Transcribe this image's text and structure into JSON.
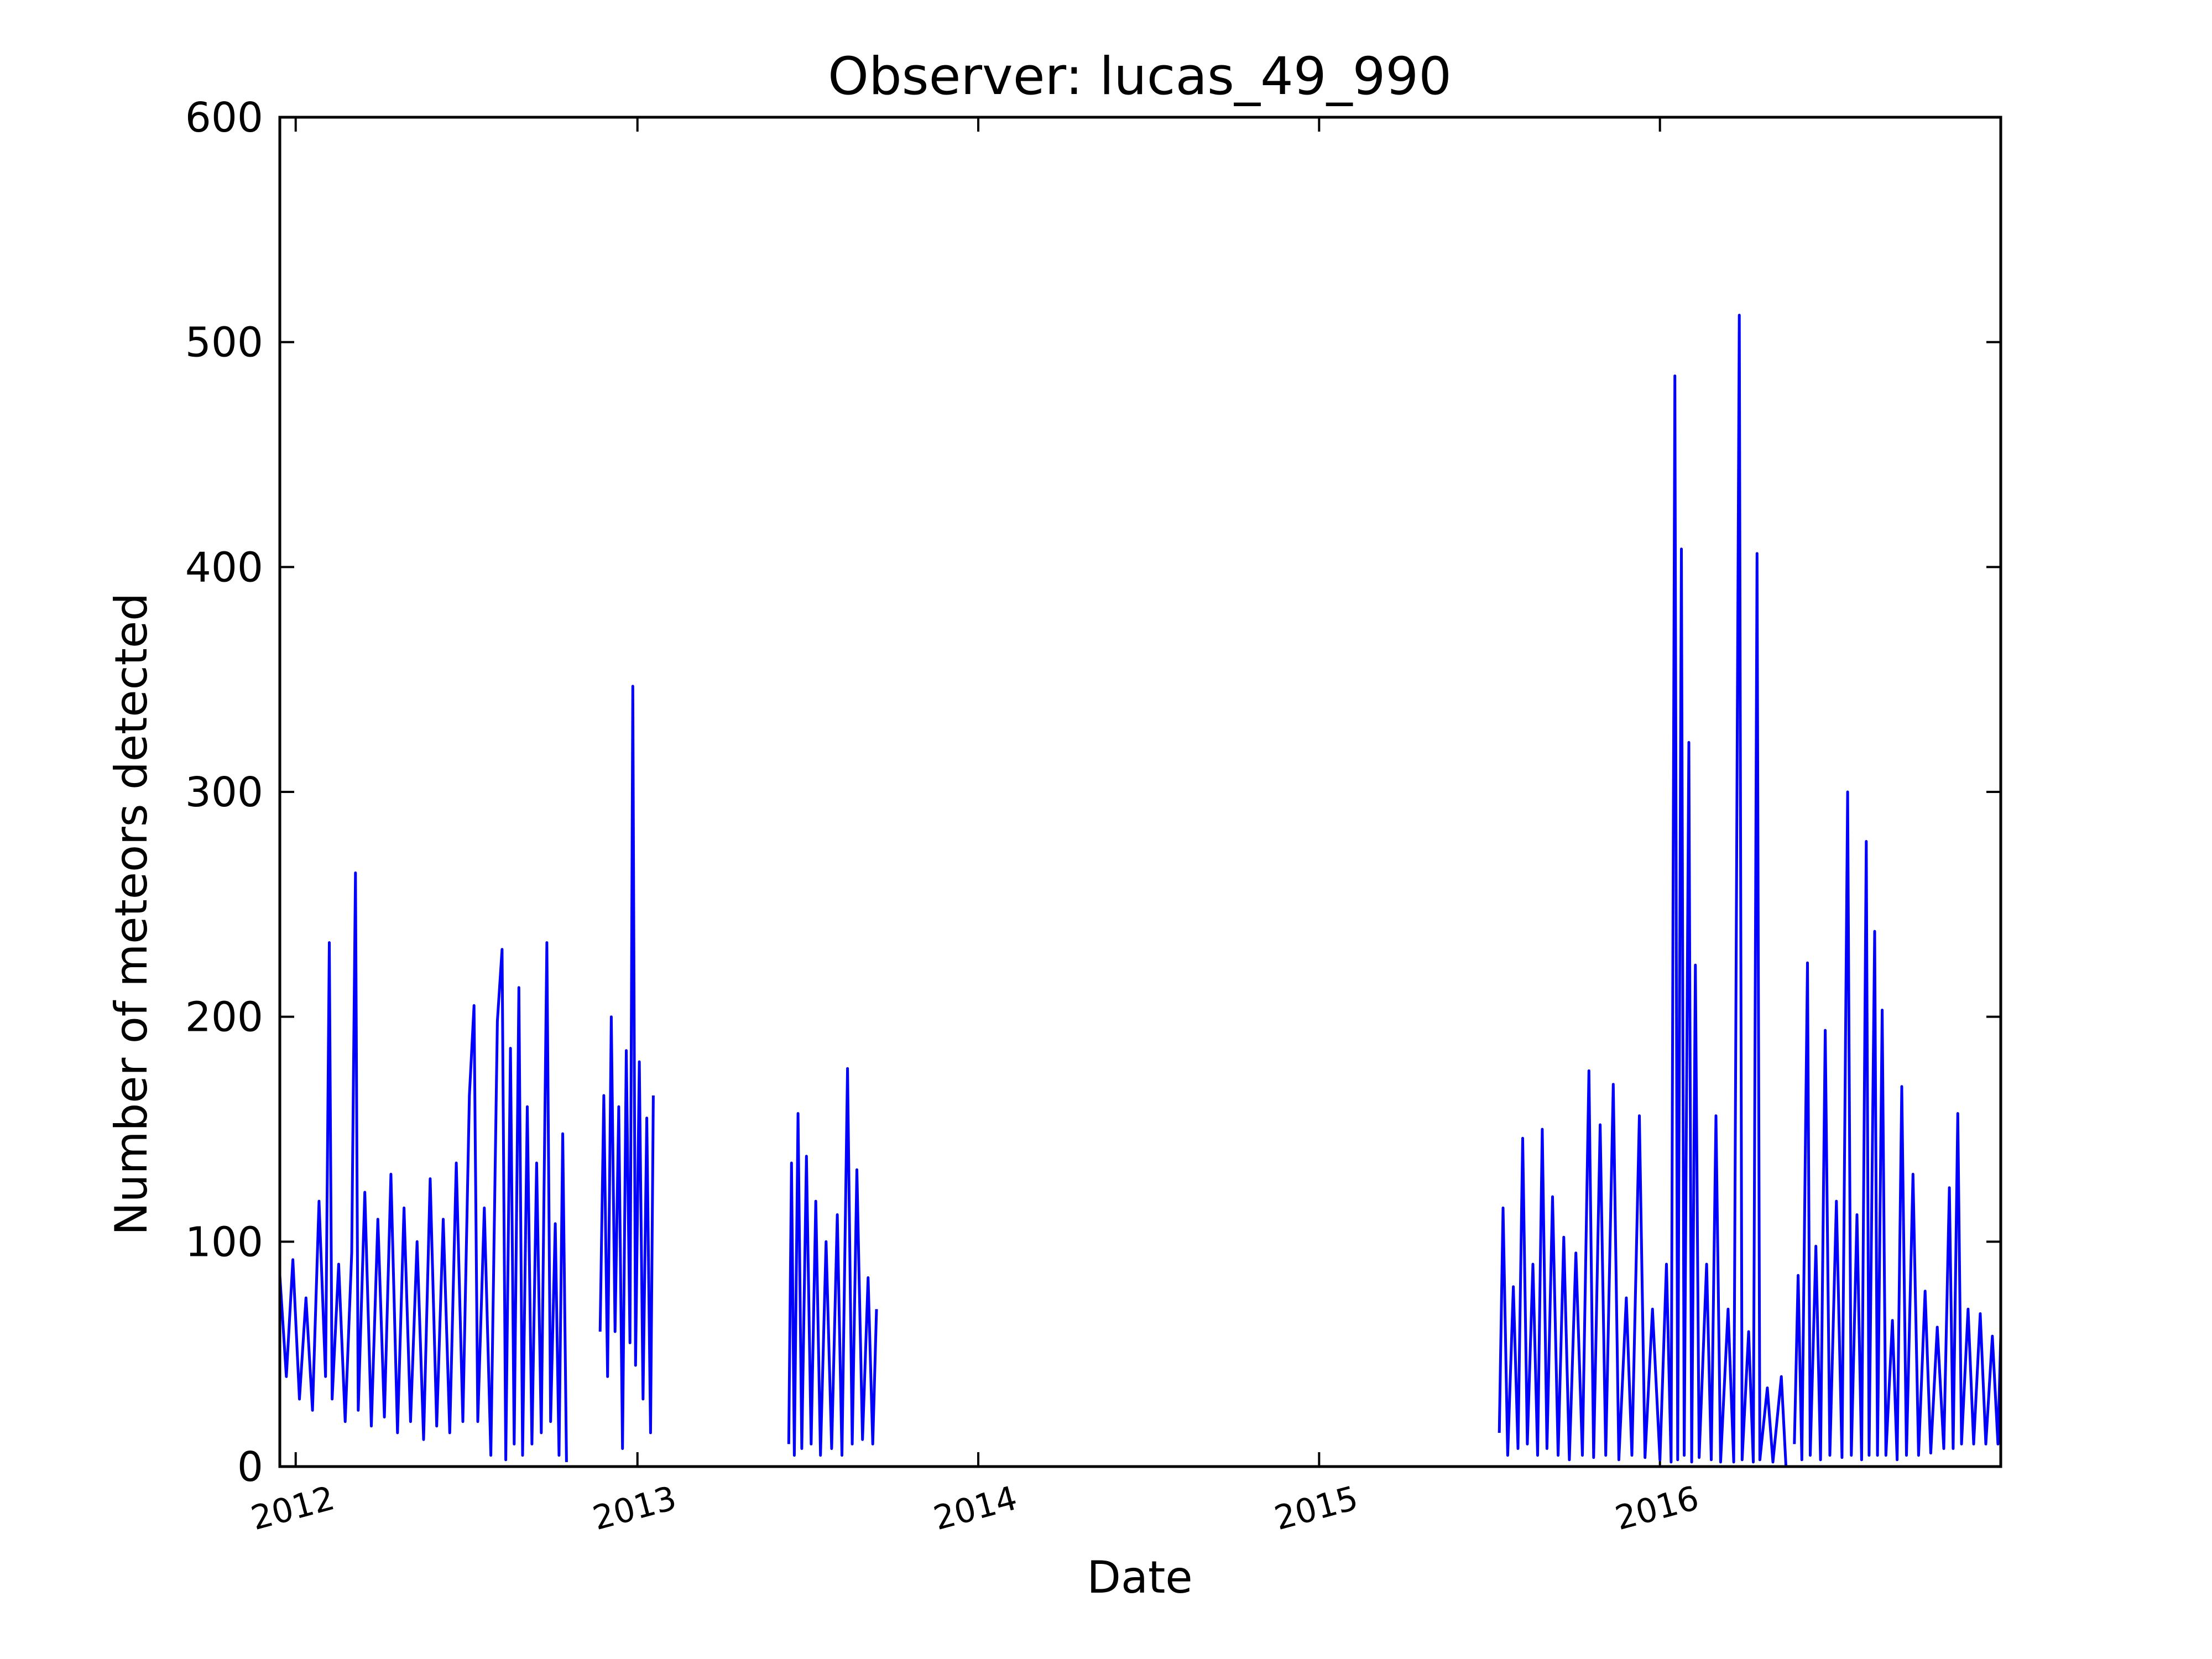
{
  "chart_data": {
    "type": "line",
    "title": "Observer: lucas_49_990",
    "xlabel": "Date",
    "ylabel": "Number of meteors detected",
    "xlim": [
      "2011-12-15",
      "2016-12-31"
    ],
    "ylim": [
      0,
      600
    ],
    "xticks": [
      {
        "date": "2012-01-01",
        "label": "2012"
      },
      {
        "date": "2013-01-01",
        "label": "2013"
      },
      {
        "date": "2014-01-01",
        "label": "2014"
      },
      {
        "date": "2015-01-01",
        "label": "2015"
      },
      {
        "date": "2016-01-01",
        "label": "2016"
      }
    ],
    "yticks": [
      0,
      100,
      200,
      300,
      400,
      500,
      600
    ],
    "grid": false,
    "line_color": "#0000ff",
    "series": [
      {
        "points": [
          [
            "2011-12-15",
            85
          ],
          [
            "2011-12-22",
            40
          ],
          [
            "2011-12-29",
            92
          ],
          [
            "2012-01-05",
            30
          ],
          [
            "2012-01-12",
            75
          ],
          [
            "2012-01-19",
            25
          ],
          [
            "2012-01-26",
            118
          ],
          [
            "2012-02-02",
            40
          ],
          [
            "2012-02-06",
            233
          ],
          [
            "2012-02-09",
            30
          ],
          [
            "2012-02-16",
            90
          ],
          [
            "2012-02-23",
            20
          ],
          [
            "2012-03-01",
            95
          ],
          [
            "2012-03-05",
            264
          ],
          [
            "2012-03-08",
            25
          ],
          [
            "2012-03-15",
            122
          ],
          [
            "2012-03-22",
            18
          ],
          [
            "2012-03-29",
            110
          ],
          [
            "2012-04-05",
            22
          ],
          [
            "2012-04-12",
            130
          ],
          [
            "2012-04-19",
            15
          ],
          [
            "2012-04-26",
            115
          ],
          [
            "2012-05-03",
            20
          ],
          [
            "2012-05-10",
            100
          ],
          [
            "2012-05-17",
            12
          ],
          [
            "2012-05-24",
            128
          ],
          [
            "2012-05-31",
            18
          ],
          [
            "2012-06-07",
            110
          ],
          [
            "2012-06-14",
            15
          ],
          [
            "2012-06-21",
            135
          ],
          [
            "2012-06-28",
            20
          ],
          [
            "2012-07-05",
            165
          ],
          [
            "2012-07-10",
            205
          ],
          [
            "2012-07-14",
            20
          ],
          [
            "2012-07-21",
            115
          ],
          [
            "2012-07-28",
            5
          ],
          [
            "2012-08-04",
            198
          ],
          [
            "2012-08-09",
            230
          ],
          [
            "2012-08-13",
            3
          ],
          [
            "2012-08-18",
            186
          ],
          [
            "2012-08-22",
            10
          ],
          [
            "2012-08-27",
            213
          ],
          [
            "2012-08-31",
            5
          ],
          [
            "2012-09-05",
            160
          ],
          [
            "2012-09-10",
            10
          ],
          [
            "2012-09-15",
            135
          ],
          [
            "2012-09-20",
            15
          ],
          [
            "2012-09-26",
            233
          ],
          [
            "2012-09-30",
            20
          ],
          [
            "2012-10-05",
            108
          ],
          [
            "2012-10-09",
            5
          ],
          [
            "2012-10-13",
            148
          ],
          [
            "2012-10-17",
            2
          ],
          null,
          [
            "2012-11-22",
            60
          ],
          [
            "2012-11-26",
            165
          ],
          [
            "2012-11-30",
            40
          ],
          [
            "2012-12-04",
            200
          ],
          [
            "2012-12-08",
            60
          ],
          [
            "2012-12-12",
            160
          ],
          [
            "2012-12-16",
            8
          ],
          [
            "2012-12-20",
            185
          ],
          [
            "2012-12-24",
            55
          ],
          [
            "2012-12-27",
            347
          ],
          [
            "2012-12-30",
            45
          ],
          [
            "2013-01-03",
            180
          ],
          [
            "2013-01-07",
            30
          ],
          [
            "2013-01-11",
            155
          ],
          [
            "2013-01-15",
            15
          ],
          [
            "2013-01-18",
            165
          ],
          null,
          [
            "2013-06-12",
            10
          ],
          [
            "2013-06-15",
            135
          ],
          [
            "2013-06-18",
            5
          ],
          [
            "2013-06-22",
            157
          ],
          [
            "2013-06-26",
            8
          ],
          [
            "2013-07-01",
            138
          ],
          [
            "2013-07-06",
            10
          ],
          [
            "2013-07-11",
            118
          ],
          [
            "2013-07-16",
            5
          ],
          [
            "2013-07-22",
            100
          ],
          [
            "2013-07-28",
            8
          ],
          [
            "2013-08-03",
            112
          ],
          [
            "2013-08-08",
            5
          ],
          [
            "2013-08-14",
            177
          ],
          [
            "2013-08-19",
            10
          ],
          [
            "2013-08-24",
            132
          ],
          [
            "2013-08-30",
            12
          ],
          [
            "2013-09-05",
            84
          ],
          [
            "2013-09-10",
            10
          ],
          [
            "2013-09-14",
            70
          ],
          null,
          [
            "2015-07-13",
            15
          ],
          [
            "2015-07-17",
            115
          ],
          [
            "2015-07-22",
            5
          ],
          [
            "2015-07-28",
            80
          ],
          [
            "2015-08-02",
            8
          ],
          [
            "2015-08-07",
            146
          ],
          [
            "2015-08-12",
            10
          ],
          [
            "2015-08-18",
            90
          ],
          [
            "2015-08-23",
            5
          ],
          [
            "2015-08-28",
            150
          ],
          [
            "2015-09-02",
            8
          ],
          [
            "2015-09-08",
            120
          ],
          [
            "2015-09-14",
            5
          ],
          [
            "2015-09-20",
            102
          ],
          [
            "2015-09-26",
            3
          ],
          [
            "2015-10-03",
            95
          ],
          [
            "2015-10-10",
            5
          ],
          [
            "2015-10-17",
            176
          ],
          [
            "2015-10-22",
            4
          ],
          [
            "2015-10-29",
            152
          ],
          [
            "2015-11-04",
            5
          ],
          [
            "2015-11-12",
            170
          ],
          [
            "2015-11-18",
            3
          ],
          [
            "2015-11-26",
            75
          ],
          [
            "2015-12-02",
            5
          ],
          [
            "2015-12-10",
            156
          ],
          [
            "2015-12-16",
            4
          ],
          [
            "2015-12-24",
            70
          ],
          [
            "2016-01-01",
            3
          ],
          [
            "2016-01-08",
            90
          ],
          [
            "2016-01-13",
            2
          ],
          [
            "2016-01-17",
            485
          ],
          [
            "2016-01-20",
            3
          ],
          [
            "2016-01-24",
            408
          ],
          [
            "2016-01-27",
            5
          ],
          [
            "2016-02-01",
            322
          ],
          [
            "2016-02-04",
            2
          ],
          [
            "2016-02-08",
            223
          ],
          [
            "2016-02-12",
            4
          ],
          [
            "2016-02-20",
            90
          ],
          [
            "2016-02-25",
            3
          ],
          [
            "2016-03-01",
            156
          ],
          [
            "2016-03-06",
            2
          ],
          [
            "2016-03-14",
            70
          ],
          [
            "2016-03-20",
            2
          ],
          [
            "2016-03-26",
            512
          ],
          [
            "2016-03-29",
            3
          ],
          [
            "2016-04-05",
            60
          ],
          [
            "2016-04-10",
            2
          ],
          [
            "2016-04-14",
            406
          ],
          [
            "2016-04-17",
            3
          ],
          [
            "2016-04-25",
            35
          ],
          [
            "2016-05-01",
            2
          ],
          [
            "2016-05-10",
            40
          ],
          [
            "2016-05-15",
            0
          ],
          null,
          [
            "2016-05-24",
            10
          ],
          [
            "2016-05-28",
            85
          ],
          [
            "2016-06-01",
            3
          ],
          [
            "2016-06-07",
            224
          ],
          [
            "2016-06-10",
            5
          ],
          [
            "2016-06-16",
            98
          ],
          [
            "2016-06-21",
            3
          ],
          [
            "2016-06-26",
            194
          ],
          [
            "2016-07-01",
            5
          ],
          [
            "2016-07-08",
            118
          ],
          [
            "2016-07-14",
            4
          ],
          [
            "2016-07-20",
            300
          ],
          [
            "2016-07-24",
            5
          ],
          [
            "2016-07-30",
            112
          ],
          [
            "2016-08-04",
            3
          ],
          [
            "2016-08-09",
            278
          ],
          [
            "2016-08-12",
            5
          ],
          [
            "2016-08-18",
            238
          ],
          [
            "2016-08-21",
            5
          ],
          [
            "2016-08-26",
            203
          ],
          [
            "2016-08-30",
            5
          ],
          [
            "2016-09-06",
            65
          ],
          [
            "2016-09-11",
            3
          ],
          [
            "2016-09-16",
            169
          ],
          [
            "2016-09-21",
            5
          ],
          [
            "2016-09-28",
            130
          ],
          [
            "2016-10-04",
            5
          ],
          [
            "2016-10-11",
            78
          ],
          [
            "2016-10-17",
            6
          ],
          [
            "2016-10-24",
            62
          ],
          [
            "2016-10-31",
            8
          ],
          [
            "2016-11-06",
            124
          ],
          [
            "2016-11-10",
            8
          ],
          [
            "2016-11-15",
            157
          ],
          [
            "2016-11-19",
            10
          ],
          [
            "2016-11-26",
            70
          ],
          [
            "2016-12-02",
            10
          ],
          [
            "2016-12-09",
            68
          ],
          [
            "2016-12-15",
            10
          ],
          [
            "2016-12-22",
            58
          ],
          [
            "2016-12-28",
            10
          ],
          [
            "2016-12-31",
            58
          ]
        ]
      }
    ]
  }
}
